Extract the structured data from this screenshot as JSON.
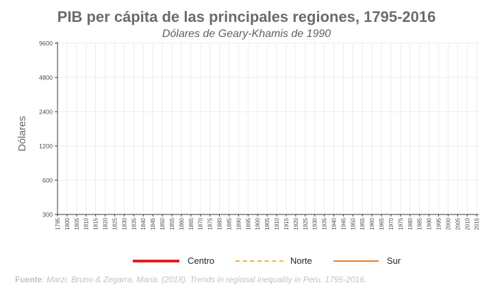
{
  "chart_data": {
    "type": "line",
    "title": "PIB per cápita de las principales regiones, 1795-2016",
    "subtitle": "Dólares de Geary-Khamis de 1990",
    "ylabel": "Dólares",
    "xlabel": "",
    "x_ticks": [
      "1795",
      "1800",
      "1805",
      "1810",
      "1815",
      "1820",
      "1825",
      "1830",
      "1835",
      "1840",
      "1845",
      "1850",
      "1855",
      "1860",
      "1865",
      "1870",
      "1875",
      "1880",
      "1885",
      "1890",
      "1895",
      "1900",
      "1905",
      "1910",
      "1915",
      "1920",
      "1925",
      "1930",
      "1935",
      "1940",
      "1945",
      "1950",
      "1955",
      "1960",
      "1965",
      "1970",
      "1975",
      "1980",
      "1985",
      "1990",
      "1995",
      "2000",
      "2005",
      "2010",
      "2015"
    ],
    "y_ticks": [
      "300",
      "600",
      "1200",
      "2400",
      "4800",
      "9600"
    ],
    "y_scale": "log",
    "xlim": [
      1795,
      2016
    ],
    "ylim": [
      300,
      9600
    ],
    "grid": true,
    "legend_position": "bottom",
    "series": [
      {
        "name": "Centro",
        "color": "#e31a1c",
        "style": "solid",
        "values": []
      },
      {
        "name": "Norte",
        "color": "#f2b33d",
        "style": "dashed",
        "values": []
      },
      {
        "name": "Sur",
        "color": "#f07b1f",
        "style": "solid",
        "values": []
      }
    ]
  },
  "source": {
    "label": "Fuente",
    "text": ": Marzi, Bruno & Zegarra, Maria. (2018). Trends in regional inequality in Peru, 1795-2016."
  }
}
